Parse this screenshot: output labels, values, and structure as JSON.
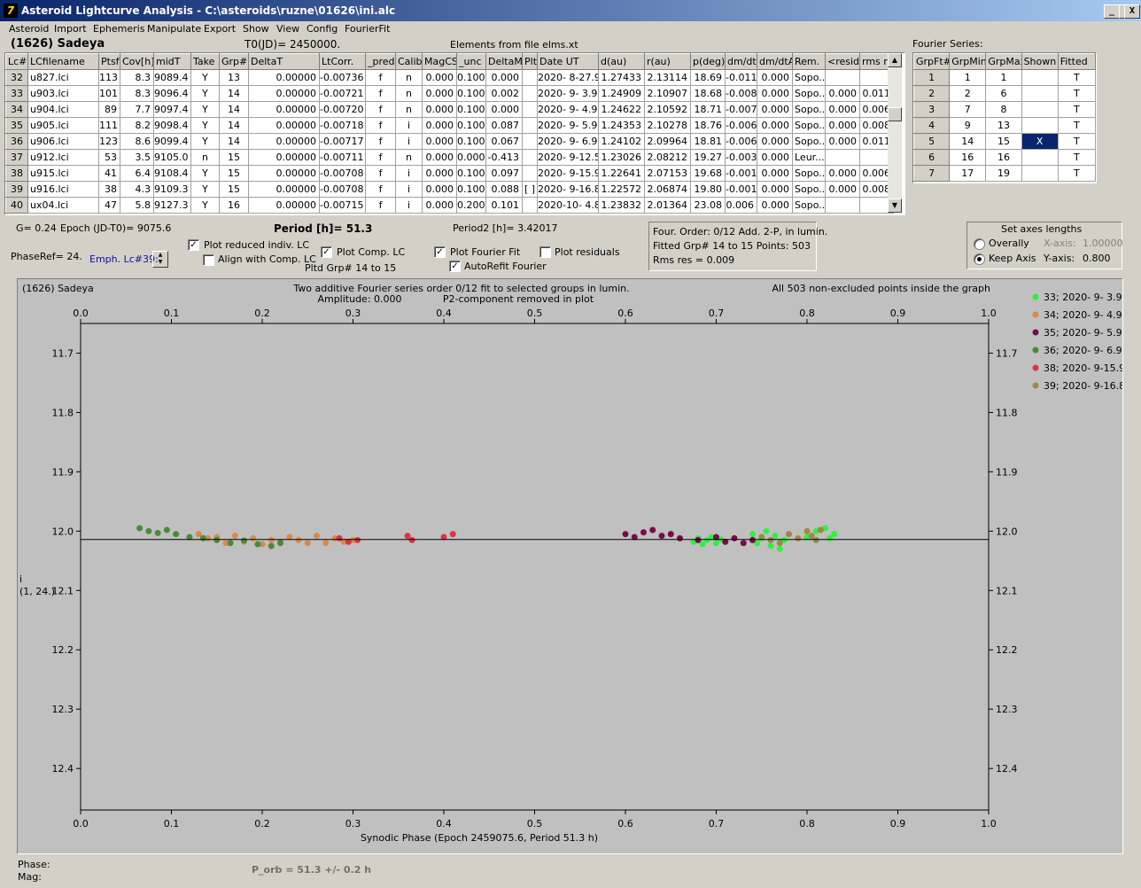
{
  "window": {
    "title": "Asteroid Lightcurve Analysis - C:\\asteroids\\ruzne\\01626\\ini.alc",
    "app_icon": "7",
    "buttons": {
      "minimize": "_",
      "maximize": "□",
      "close": "X"
    }
  },
  "menu": [
    "Asteroid",
    "Import",
    "Ephemeris",
    "Manipulate",
    "Export",
    "Show",
    "View",
    "Config",
    "FourierFit"
  ],
  "header": {
    "asteroid": "(1626) Sadeya",
    "t0": "T0(JD)= 2450000.",
    "elements": "Elements from file elms.xt",
    "fourier_label": "Fourier Series:"
  },
  "lc_table": {
    "columns": [
      "Lc#",
      "LCfilename",
      "Ptsf",
      "Cov[h]",
      "midT",
      "Take",
      "Grp#",
      "DeltaT",
      "LtCorr.",
      "_pred.",
      "Calib.",
      "MagCS",
      "_unc",
      "DeltaM",
      "Plt",
      "Date UT",
      "d(au)",
      "r(au)",
      "p(deg)",
      "dm/dt",
      "dm/dtA",
      "Rem.",
      "<resid>",
      "rms res"
    ],
    "rows": [
      [
        "32",
        "u827.lci",
        "113",
        "8.3",
        "9089.4",
        "Y",
        "13",
        "0.00000",
        "-0.00736",
        "f",
        "n",
        "0.000",
        "0.100",
        "0.000",
        "",
        "2020- 8-27.9",
        "1.27433",
        "2.13114",
        "18.69",
        "-0.011",
        "0.000",
        "Sopo...",
        "",
        ""
      ],
      [
        "33",
        "u903.lci",
        "101",
        "8.3",
        "9096.4",
        "Y",
        "14",
        "0.00000",
        "-0.00721",
        "f",
        "n",
        "0.000",
        "0.100",
        "0.002",
        "",
        "2020- 9- 3.9",
        "1.24909",
        "2.10907",
        "18.68",
        "-0.008",
        "0.000",
        "Sopo...",
        "0.000",
        "0.011"
      ],
      [
        "34",
        "u904.lci",
        "89",
        "7.7",
        "9097.4",
        "Y",
        "14",
        "0.00000",
        "-0.00720",
        "f",
        "n",
        "0.000",
        "0.100",
        "0.000",
        "",
        "2020- 9- 4.9",
        "1.24622",
        "2.10592",
        "18.71",
        "-0.007",
        "0.000",
        "Sopo...",
        "0.000",
        "0.006"
      ],
      [
        "35",
        "u905.lci",
        "111",
        "8.2",
        "9098.4",
        "Y",
        "14",
        "0.00000",
        "-0.00718",
        "f",
        "i",
        "0.000",
        "0.100",
        "0.087",
        "",
        "2020- 9- 5.9",
        "1.24353",
        "2.10278",
        "18.76",
        "-0.006",
        "0.000",
        "Sopo...",
        "0.000",
        "0.008"
      ],
      [
        "36",
        "u906.lci",
        "123",
        "8.6",
        "9099.4",
        "Y",
        "14",
        "0.00000",
        "-0.00717",
        "f",
        "i",
        "0.000",
        "0.100",
        "0.067",
        "",
        "2020- 9- 6.9",
        "1.24102",
        "2.09964",
        "18.81",
        "-0.006",
        "0.000",
        "Sopo...",
        "0.000",
        "0.011"
      ],
      [
        "37",
        "u912.lci",
        "53",
        "3.5",
        "9105.0",
        "n",
        "15",
        "0.00000",
        "-0.00711",
        "f",
        "n",
        "0.000",
        "0.000",
        "-0.413",
        "",
        "2020- 9-12.5",
        "1.23026",
        "2.08212",
        "19.27",
        "-0.003",
        "0.000",
        "Leur...",
        "",
        ""
      ],
      [
        "38",
        "u915.lci",
        "41",
        "6.4",
        "9108.4",
        "Y",
        "15",
        "0.00000",
        "-0.00708",
        "f",
        "i",
        "0.000",
        "0.100",
        "0.097",
        "",
        "2020- 9-15.9",
        "1.22641",
        "2.07153",
        "19.68",
        "-0.001",
        "0.000",
        "Sopo...",
        "0.000",
        "0.006"
      ],
      [
        "39",
        "u916.lci",
        "38",
        "4.3",
        "9109.3",
        "Y",
        "15",
        "0.00000",
        "-0.00708",
        "f",
        "i",
        "0.000",
        "0.100",
        "0.088",
        "[ ]",
        "2020- 9-16.8",
        "1.22572",
        "2.06874",
        "19.80",
        "-0.001",
        "0.000",
        "Sopo...",
        "0.000",
        "0.008"
      ],
      [
        "40",
        "ux04.lci",
        "47",
        "5.8",
        "9127.3",
        "Y",
        "16",
        "0.00000",
        "-0.00715",
        "f",
        "i",
        "0.000",
        "0.200",
        "0.101",
        "",
        "2020-10- 4.8",
        "1.23832",
        "2.01364",
        "23.08",
        "0.006",
        "0.000",
        "Sopo...",
        "",
        ""
      ]
    ]
  },
  "fourier_table": {
    "columns": [
      "GrpFt#",
      "GrpMin",
      "GrpMax",
      "Shown",
      "Fitted"
    ],
    "rows": [
      [
        "1",
        "1",
        "1",
        "",
        "T"
      ],
      [
        "2",
        "2",
        "6",
        "",
        "T"
      ],
      [
        "3",
        "7",
        "8",
        "",
        "T"
      ],
      [
        "4",
        "9",
        "13",
        "",
        "T"
      ],
      [
        "5",
        "14",
        "15",
        "X",
        "T"
      ],
      [
        "6",
        "16",
        "16",
        "",
        "T"
      ],
      [
        "7",
        "17",
        "19",
        "",
        "T"
      ]
    ]
  },
  "controls": {
    "g": "G= 0.24",
    "epoch": "Epoch (JD-T0)= 9075.6",
    "period": "Period [h]= 51.3",
    "period2": "Period2 [h]= 3.42017",
    "phaseref": "PhaseRef= 24.",
    "emph": "Emph. Lc#39:",
    "plot_reduced": "Plot reduced indiv. LC",
    "align_comp": "Align with Comp. LC",
    "plot_comp": "Plot Comp. LC",
    "pltd_grp": "Pltd Grp#  14 to   15",
    "plot_fourier": "Plot Fourier Fit",
    "autorefit": "AutoRefit Fourier",
    "plot_residuals": "Plot residuals",
    "check": "✓",
    "info1": "Four. Order:  0/12    Add. 2-P, in lumin.",
    "info2": "Fitted Grp# 14 to 15 Points: 503",
    "info3": "Rms res     = 0.009",
    "axes_title": "Set axes lengths",
    "overally": "Overally",
    "keep_axis": "Keep Axis",
    "xaxis_label": "X-axis:",
    "xaxis_val": "1.00000",
    "yaxis_label": "Y-axis:",
    "yaxis_val": "0.800"
  },
  "plot": {
    "title_left": "(1626) Sadeya",
    "title_center1": "Two additive Fourier series order 0/12 fit to selected groups in lumin.",
    "title_center2": "Amplitude: 0.000",
    "title_center3": "P2-component removed in plot",
    "title_right": "All 503 non-excluded points inside the graph",
    "xlabel": "Synodic Phase (Epoch 2459075.6, Period 51.3 h)",
    "ylabel1": "i",
    "ylabel2": "(1, 24.)"
  },
  "footer": {
    "phase": "Phase:",
    "mag": "Mag:",
    "porb": "P_orb = 51.3 +/- 0.2 h"
  },
  "chart_data": {
    "type": "scatter",
    "xlim": [
      0.0,
      1.0
    ],
    "ylim": [
      12.47,
      11.65
    ],
    "x_ticks": [
      "0.0",
      "0.1",
      "0.2",
      "0.3",
      "0.4",
      "0.5",
      "0.6",
      "0.7",
      "0.8",
      "0.9",
      "1.0"
    ],
    "y_ticks": [
      "11.7",
      "11.8",
      "11.9",
      "12.0",
      "12.1",
      "12.2",
      "12.3",
      "12.4"
    ],
    "fit_line_y": 12.014,
    "grid": false,
    "legend_position": "right",
    "series": [
      {
        "name": "33; 2020- 9- 3.9",
        "color": "#33ee44",
        "points": [
          [
            0.675,
            12.018
          ],
          [
            0.68,
            12.012
          ],
          [
            0.685,
            12.022
          ],
          [
            0.69,
            12.015
          ],
          [
            0.695,
            12.01
          ],
          [
            0.7,
            12.02
          ],
          [
            0.705,
            12.014
          ],
          [
            0.74,
            12.005
          ],
          [
            0.745,
            12.02
          ],
          [
            0.75,
            12.012
          ],
          [
            0.755,
            12.0
          ],
          [
            0.76,
            12.025
          ],
          [
            0.765,
            12.008
          ],
          [
            0.77,
            12.03
          ],
          [
            0.775,
            12.015
          ],
          [
            0.8,
            12.01
          ],
          [
            0.81,
            12.0
          ],
          [
            0.82,
            11.995
          ],
          [
            0.825,
            12.012
          ],
          [
            0.83,
            12.005
          ]
        ]
      },
      {
        "name": "34; 2020- 9- 4.9",
        "color": "#d98a4a",
        "points": [
          [
            0.13,
            12.005
          ],
          [
            0.14,
            12.012
          ],
          [
            0.15,
            12.01
          ],
          [
            0.16,
            12.02
          ],
          [
            0.17,
            12.008
          ],
          [
            0.18,
            12.018
          ],
          [
            0.19,
            12.012
          ],
          [
            0.2,
            12.022
          ],
          [
            0.21,
            12.015
          ],
          [
            0.22,
            12.018
          ],
          [
            0.23,
            12.01
          ],
          [
            0.24,
            12.015
          ],
          [
            0.25,
            12.02
          ],
          [
            0.26,
            12.008
          ],
          [
            0.27,
            12.02
          ],
          [
            0.28,
            12.012
          ],
          [
            0.29,
            12.018
          ],
          [
            0.3,
            12.015
          ]
        ]
      },
      {
        "name": "35; 2020- 9- 5.9",
        "color": "#7a0a4a",
        "points": [
          [
            0.6,
            12.005
          ],
          [
            0.61,
            12.01
          ],
          [
            0.62,
            12.002
          ],
          [
            0.63,
            11.998
          ],
          [
            0.64,
            12.008
          ],
          [
            0.65,
            12.005
          ],
          [
            0.66,
            12.012
          ],
          [
            0.68,
            12.015
          ],
          [
            0.7,
            12.01
          ],
          [
            0.71,
            12.018
          ],
          [
            0.72,
            12.012
          ],
          [
            0.73,
            12.02
          ],
          [
            0.74,
            12.015
          ]
        ]
      },
      {
        "name": "36; 2020- 9- 6.9",
        "color": "#4a8a3a",
        "points": [
          [
            0.065,
            11.995
          ],
          [
            0.075,
            12.0
          ],
          [
            0.085,
            12.003
          ],
          [
            0.095,
            11.998
          ],
          [
            0.105,
            12.005
          ],
          [
            0.12,
            12.01
          ],
          [
            0.135,
            12.012
          ],
          [
            0.15,
            12.015
          ],
          [
            0.165,
            12.02
          ],
          [
            0.18,
            12.016
          ],
          [
            0.195,
            12.022
          ],
          [
            0.21,
            12.025
          ],
          [
            0.22,
            12.02
          ]
        ]
      },
      {
        "name": "38; 2020- 9-15.9",
        "color": "#dd3344",
        "points": [
          [
            0.285,
            12.012
          ],
          [
            0.295,
            12.018
          ],
          [
            0.305,
            12.015
          ],
          [
            0.36,
            12.008
          ],
          [
            0.365,
            12.015
          ],
          [
            0.4,
            12.01
          ],
          [
            0.41,
            12.005
          ]
        ]
      },
      {
        "name": "39; 2020- 9-16.8",
        "color": "#9a8a44",
        "points": [
          [
            0.75,
            12.01
          ],
          [
            0.76,
            12.015
          ],
          [
            0.77,
            12.02
          ],
          [
            0.78,
            12.005
          ],
          [
            0.79,
            12.012
          ],
          [
            0.8,
            12.0
          ],
          [
            0.805,
            12.008
          ],
          [
            0.81,
            12.015
          ],
          [
            0.815,
            11.998
          ]
        ]
      }
    ]
  },
  "colors": {
    "plot_bg": "#c0c0c0",
    "titlebar_start": "#0a246a",
    "titlebar_end": "#a6caf0",
    "selection": "#0a246a",
    "emph_link": "#1010a0"
  }
}
